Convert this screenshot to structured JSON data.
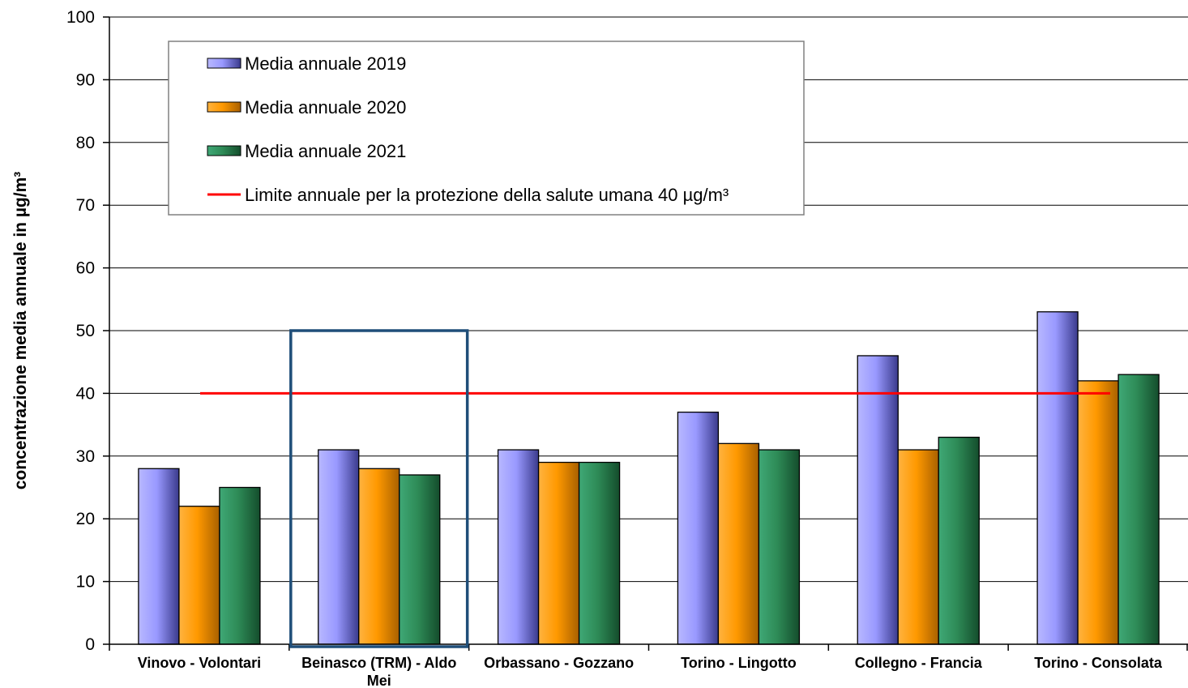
{
  "chart_data": {
    "type": "bar",
    "ylabel": "concentrazione media annuale in µg/m³",
    "xlabel": "",
    "ylim": [
      0,
      100
    ],
    "yticks": [
      0,
      10,
      20,
      30,
      40,
      50,
      60,
      70,
      80,
      90,
      100
    ],
    "grid": true,
    "legend_placement": "top-left",
    "categories": [
      [
        "Vinovo - Volontari"
      ],
      [
        "Beinasco (TRM) - Aldo",
        "Mei"
      ],
      [
        "Orbassano - Gozzano"
      ],
      [
        "Torino - Lingotto"
      ],
      [
        "Collegno - Francia"
      ],
      [
        "Torino - Consolata"
      ]
    ],
    "series": [
      {
        "name": "Media annuale 2019",
        "values": [
          28,
          31,
          31,
          37,
          46,
          53
        ],
        "color": "#9999ff"
      },
      {
        "name": "Media annuale 2020",
        "values": [
          22,
          28,
          29,
          32,
          31,
          42
        ],
        "color": "#ff9900"
      },
      {
        "name": "Media annuale 2021",
        "values": [
          25,
          27,
          29,
          31,
          33,
          43
        ],
        "color": "#2e8b57"
      }
    ],
    "limit_line": {
      "name": "Limite annuale per la protezione della salute umana 40 µg/m³",
      "value": 40,
      "color": "#ff0000"
    },
    "highlight": {
      "category_index": 1,
      "ymax": 50,
      "color": "#1f4e79"
    }
  }
}
